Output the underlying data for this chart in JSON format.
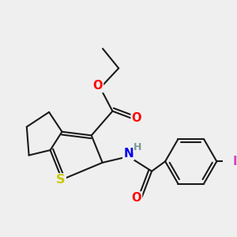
{
  "bg_color": "#efefef",
  "bond_color": "#1a1a1a",
  "bond_width": 1.5,
  "atom_colors": {
    "O": "#ff0000",
    "S": "#c8c800",
    "N": "#0000ee",
    "H": "#7a9a9a",
    "I": "#cc44bb",
    "C": "#1a1a1a"
  },
  "font_size": 10.5
}
